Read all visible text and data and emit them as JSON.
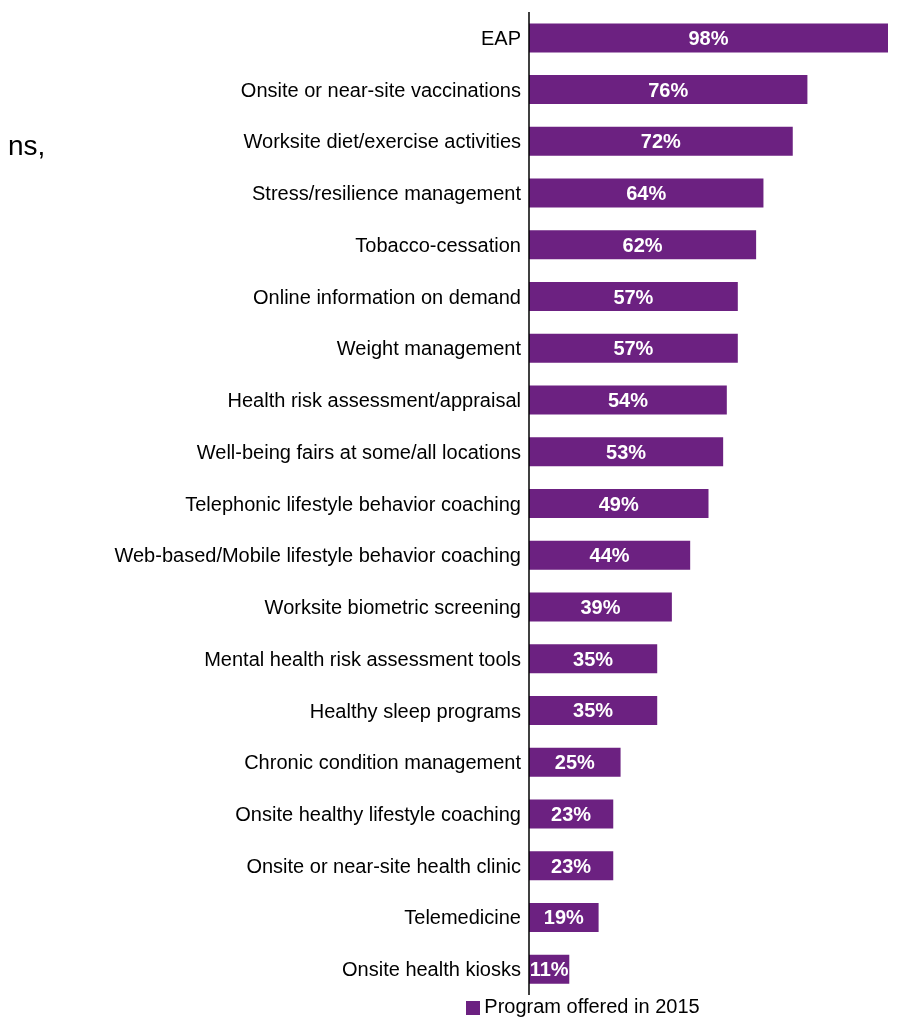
{
  "chart_data": {
    "type": "bar",
    "orientation": "horizontal",
    "categories": [
      "EAP",
      "Onsite or near-site vaccinations",
      "Worksite diet/exercise activities",
      "Stress/resilience management ",
      "Tobacco-cessation ",
      "Online information on demand ",
      "Weight management",
      "Health risk assessment/appraisal ",
      "Well-being fairs at some/all locations",
      "Telephonic lifestyle behavior coaching ",
      "Web-based/Mobile lifestyle behavior coaching ",
      "Worksite biometric screening",
      "Mental health risk assessment tools",
      "Healthy sleep programs ",
      "Chronic condition management ",
      "Onsite healthy lifestyle coaching",
      "Onsite or near-site health clinic",
      "Telemedicine ",
      "Onsite health kiosks"
    ],
    "series": [
      {
        "name": "Program offered in 2015",
        "color": "#6c2181",
        "values": [
          98,
          76,
          72,
          64,
          62,
          57,
          57,
          54,
          53,
          49,
          44,
          39,
          35,
          35,
          25,
          23,
          23,
          19,
          11
        ],
        "value_labels": [
          "98%",
          "76%",
          "72%",
          "64%",
          "62%",
          "57%",
          "57%",
          "54%",
          "53%",
          "49%",
          "44%",
          "39%",
          "35%",
          "35%",
          "25%",
          "23%",
          "23%",
          "19%",
          "11%"
        ]
      }
    ],
    "legend": "bottom",
    "annotations": [
      "ns,"
    ]
  }
}
